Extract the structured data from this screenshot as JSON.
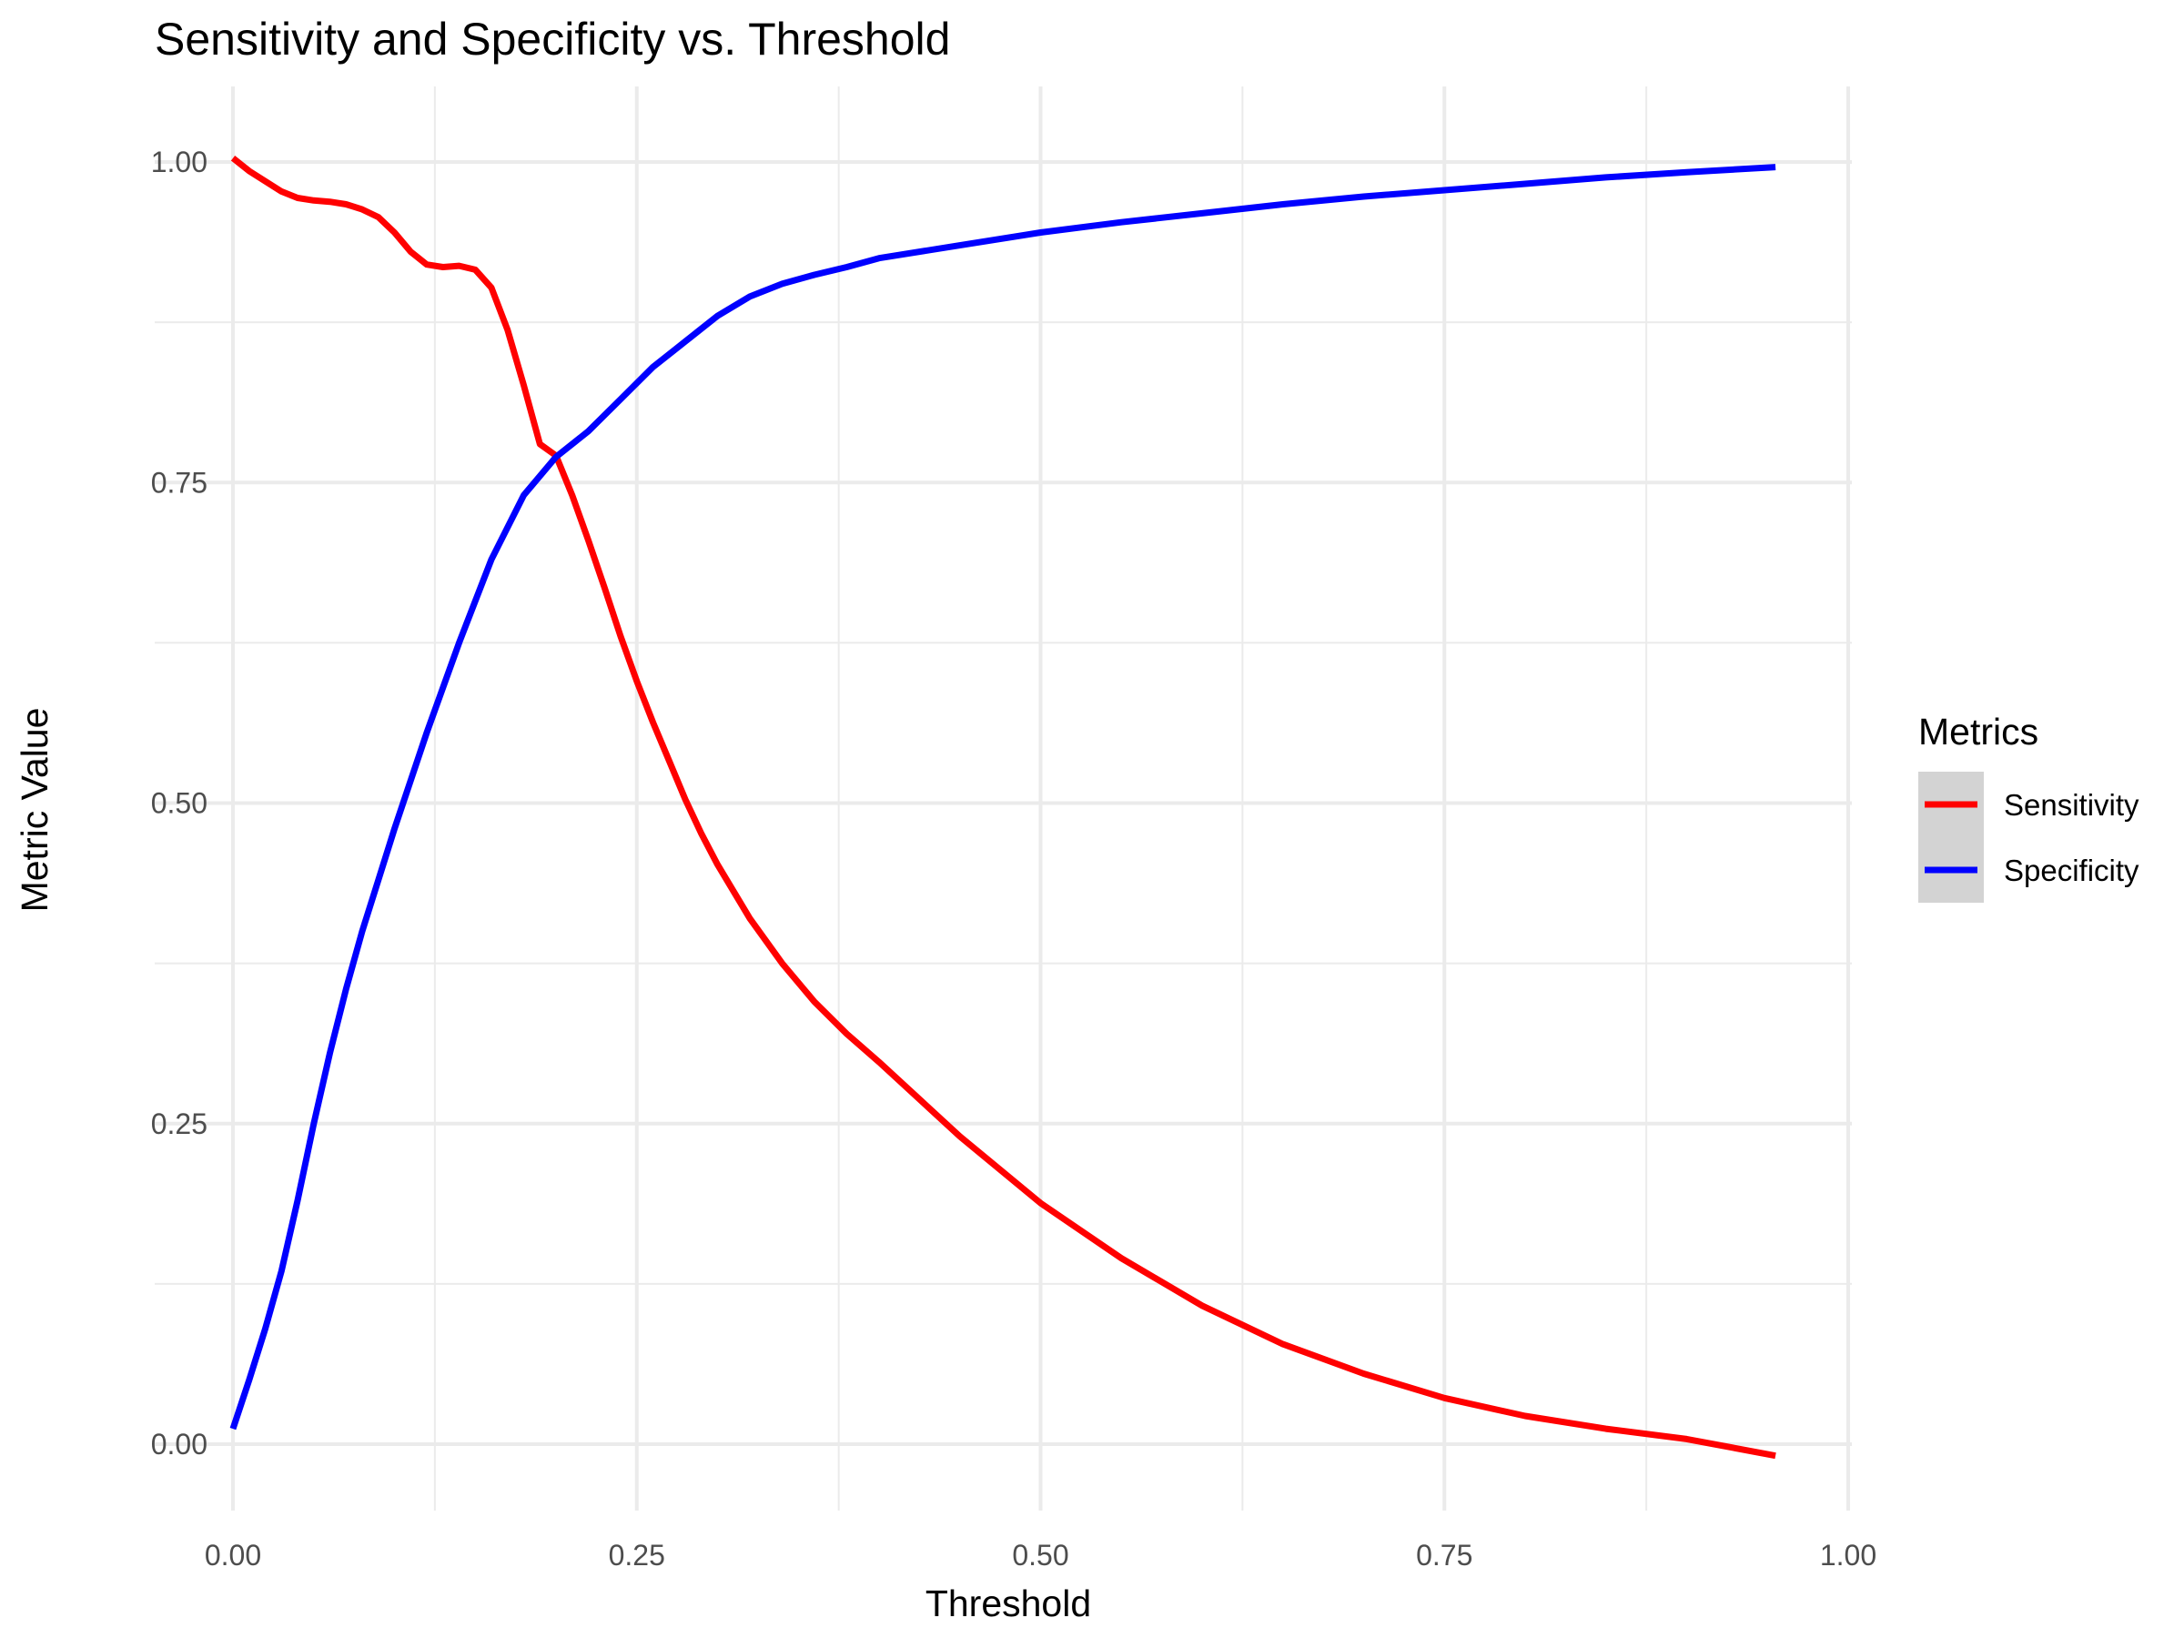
{
  "chart_data": {
    "type": "line",
    "title": "Sensitivity and Specificity vs. Threshold",
    "xlabel": "Threshold",
    "ylabel": "Metric Value",
    "xlim": [
      0,
      1
    ],
    "ylim": [
      0,
      1
    ],
    "x_ticks": [
      "0.00",
      "0.25",
      "0.50",
      "0.75",
      "1.00"
    ],
    "y_ticks": [
      "0.00",
      "0.25",
      "0.50",
      "0.75",
      "1.00"
    ],
    "grid": true,
    "legend": {
      "title": "Metrics",
      "position": "right"
    },
    "series": [
      {
        "name": "Sensitivity",
        "color": "#ff0000",
        "x": [
          0.0,
          0.01,
          0.03,
          0.04,
          0.05,
          0.06,
          0.07,
          0.08,
          0.09,
          0.1,
          0.11,
          0.12,
          0.13,
          0.14,
          0.15,
          0.16,
          0.17,
          0.18,
          0.19,
          0.2,
          0.21,
          0.22,
          0.23,
          0.24,
          0.25,
          0.26,
          0.27,
          0.28,
          0.29,
          0.3,
          0.32,
          0.34,
          0.36,
          0.38,
          0.4,
          0.45,
          0.5,
          0.55,
          0.6,
          0.65,
          0.7,
          0.75,
          0.8,
          0.85,
          0.9,
          0.955
        ],
        "y": [
          1.003,
          0.993,
          0.977,
          0.972,
          0.97,
          0.969,
          0.967,
          0.963,
          0.957,
          0.945,
          0.93,
          0.92,
          0.918,
          0.919,
          0.916,
          0.902,
          0.869,
          0.826,
          0.78,
          0.771,
          0.74,
          0.705,
          0.668,
          0.63,
          0.595,
          0.563,
          0.533,
          0.503,
          0.476,
          0.452,
          0.41,
          0.375,
          0.345,
          0.32,
          0.298,
          0.24,
          0.188,
          0.145,
          0.108,
          0.078,
          0.055,
          0.036,
          0.022,
          0.012,
          0.004,
          -0.009
        ]
      },
      {
        "name": "Specificity",
        "color": "#0000ff",
        "x": [
          0.0,
          0.01,
          0.02,
          0.03,
          0.04,
          0.05,
          0.06,
          0.07,
          0.08,
          0.09,
          0.1,
          0.12,
          0.14,
          0.16,
          0.18,
          0.2,
          0.22,
          0.24,
          0.26,
          0.28,
          0.3,
          0.32,
          0.34,
          0.36,
          0.38,
          0.4,
          0.45,
          0.5,
          0.55,
          0.6,
          0.65,
          0.7,
          0.75,
          0.8,
          0.85,
          0.9,
          0.955
        ],
        "y": [
          0.012,
          0.05,
          0.09,
          0.135,
          0.19,
          0.25,
          0.305,
          0.355,
          0.4,
          0.44,
          0.48,
          0.555,
          0.625,
          0.69,
          0.74,
          0.77,
          0.79,
          0.815,
          0.84,
          0.86,
          0.88,
          0.895,
          0.905,
          0.912,
          0.918,
          0.925,
          0.935,
          0.945,
          0.953,
          0.96,
          0.967,
          0.973,
          0.978,
          0.983,
          0.988,
          0.992,
          0.996
        ]
      }
    ]
  }
}
